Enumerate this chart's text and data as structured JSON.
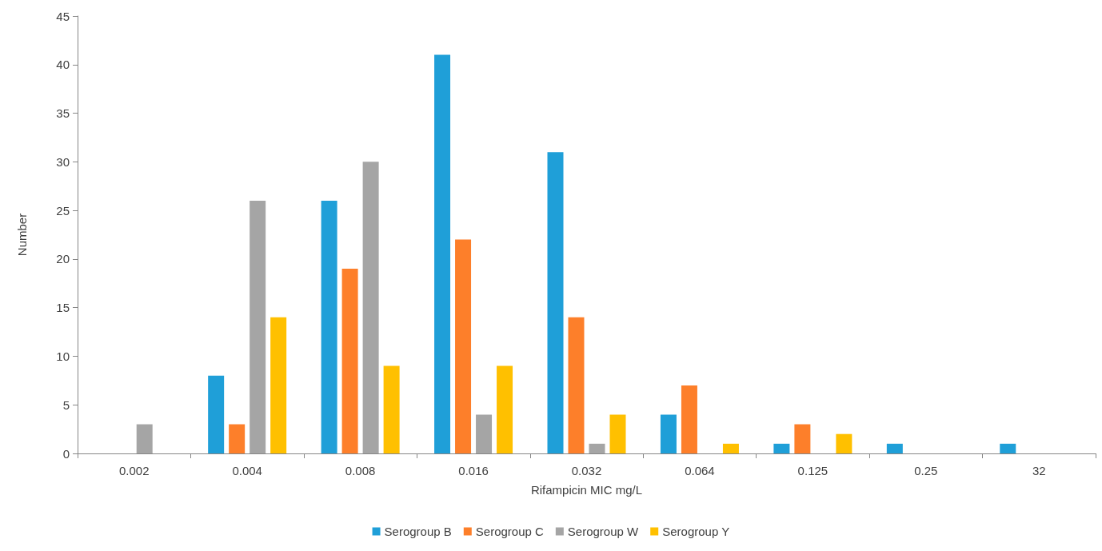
{
  "chart_data": {
    "type": "bar",
    "xlabel": "Rifampicin MIC mg/L",
    "ylabel": "Number",
    "categories": [
      "0.002",
      "0.004",
      "0.008",
      "0.016",
      "0.032",
      "0.064",
      "0.125",
      "0.25",
      "32"
    ],
    "series": [
      {
        "name": "Serogroup B",
        "color": "#1f9fd8",
        "values": [
          null,
          8,
          26,
          41,
          31,
          4,
          1,
          1,
          1
        ]
      },
      {
        "name": "Serogroup C",
        "color": "#fd7f2a",
        "values": [
          null,
          3,
          19,
          22,
          14,
          7,
          3,
          null,
          null
        ]
      },
      {
        "name": "Serogroup W",
        "color": "#a5a5a5",
        "values": [
          3,
          26,
          30,
          4,
          1,
          null,
          null,
          null,
          null
        ]
      },
      {
        "name": "Serogroup Y",
        "color": "#ffc000",
        "values": [
          null,
          14,
          9,
          9,
          4,
          1,
          2,
          null,
          null
        ]
      }
    ],
    "ylim": [
      0,
      45
    ],
    "yticks": [
      0,
      5,
      10,
      15,
      20,
      25,
      30,
      35,
      40,
      45
    ],
    "grid": false,
    "legend": "bottom"
  }
}
